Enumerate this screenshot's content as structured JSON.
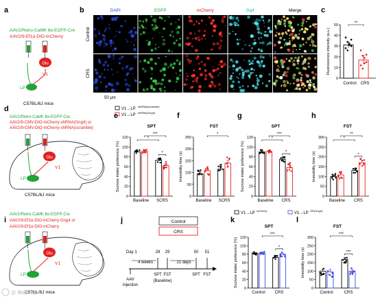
{
  "panel_letters": [
    "a",
    "b",
    "c",
    "d",
    "e",
    "f",
    "g",
    "h",
    "i",
    "j",
    "k",
    "l"
  ],
  "panel_a": {
    "viral_lines": [
      {
        "text": "AAV2/Retro-CaMK Ⅱα-EGFP-Cre",
        "color": "#22a33a"
      },
      {
        "text": "AAV2/9-Ef1α-DIO-mCherry",
        "color": "#e02020"
      }
    ],
    "labels": {
      "glu": "Glu",
      "v1": "V1",
      "lp": "LP",
      "mouse": "C57BL/6J mice"
    }
  },
  "panel_b": {
    "channels": [
      "DAPI",
      "EGFP",
      "mCherry",
      "Gq4",
      "Merge"
    ],
    "channel_colors": [
      "#2a4bd8",
      "#22a33a",
      "#e02020",
      "#20b8c8",
      "#000000"
    ],
    "rows": [
      "Control",
      "CRS"
    ],
    "scalebar": "50 μm"
  },
  "panel_c": {
    "ylabel": "Fluorescence intensity (a.u.)",
    "sig": "**",
    "chart_data": {
      "type": "bar",
      "categories": [
        "Control",
        "CRS"
      ],
      "values": [
        31,
        17
      ],
      "errors": [
        2.5,
        4
      ],
      "ylim": [
        0,
        50
      ],
      "yticks": [
        "0",
        "10",
        "20",
        "30",
        "40",
        "50"
      ],
      "points": [
        [
          38,
          34,
          32,
          30,
          28,
          26,
          31,
          36
        ],
        [
          26,
          21,
          19,
          15,
          12,
          9,
          14,
          22
        ]
      ],
      "colors": [
        "#000000",
        "#e02020"
      ],
      "ylabel": "Fluorescence intensity (a.u.)"
    }
  },
  "panel_d": {
    "viral_lines": [
      {
        "text": "AAV2/Retro-CaMK Ⅱα-EGFP-Cre",
        "color": "#22a33a"
      },
      {
        "text": "AAV2/9-CMV-DIO-mCherry-shRNA(Gng4) or",
        "color": "#e02020"
      },
      {
        "text": "AAV2/9-CMV-DIO-mCherry-shRNA(scramble)",
        "color": "#e02020"
      }
    ],
    "labels": {
      "glu": "Glu",
      "v1": "V1",
      "lp": "LP",
      "mouse": "C57BL/6J mice"
    }
  },
  "legend_efgh": [
    {
      "label": "V1→LP",
      "sup": "shRNA(scramble)",
      "color": "#000000"
    },
    {
      "label": "V1→LP",
      "sup": "shRNA(Gng4)",
      "color": "#e02020"
    }
  ],
  "panel_e": {
    "title": "SPT",
    "sigs": [
      "***",
      "*",
      "*"
    ],
    "chart_data": {
      "type": "bar",
      "groups": [
        "Baseline",
        "SCRS"
      ],
      "series": [
        {
          "color": "#000000",
          "values": [
            90,
            73
          ],
          "errors": [
            2,
            3
          ]
        },
        {
          "color": "#e02020",
          "values": [
            91,
            62
          ],
          "errors": [
            2,
            4
          ]
        }
      ],
      "ylim": [
        0,
        120
      ],
      "yticks": [
        "0",
        "20",
        "40",
        "60",
        "80",
        "100",
        "120"
      ],
      "ylabel": "Sucrose intake preference (%)"
    }
  },
  "panel_f": {
    "title": "FST",
    "sigs": [
      "*"
    ],
    "chart_data": {
      "type": "bar",
      "groups": [
        "Baseline",
        "SCRS"
      ],
      "series": [
        {
          "color": "#000000",
          "values": [
            95,
            115
          ],
          "errors": [
            8,
            10
          ]
        },
        {
          "color": "#e02020",
          "values": [
            108,
            140
          ],
          "errors": [
            10,
            12
          ]
        }
      ],
      "ylim": [
        0,
        250
      ],
      "yticks": [
        "0",
        "50",
        "100",
        "150",
        "200",
        "250"
      ],
      "ylabel": "Immobility time (s)"
    }
  },
  "panel_g": {
    "title": "SPT",
    "sigs": [
      "***",
      "*",
      "*"
    ],
    "chart_data": {
      "type": "bar",
      "groups": [
        "Baseline",
        "CRS"
      ],
      "series": [
        {
          "color": "#000000",
          "values": [
            90,
            75
          ],
          "errors": [
            2,
            3
          ]
        },
        {
          "color": "#e02020",
          "values": [
            91,
            58
          ],
          "errors": [
            2,
            5
          ]
        }
      ],
      "ylim": [
        0,
        120
      ],
      "yticks": [
        "0",
        "20",
        "40",
        "60",
        "80",
        "100",
        "120"
      ],
      "ylabel": "Sucrose intake preference (%)"
    }
  },
  "panel_h": {
    "title": "FST",
    "sigs": [
      "**",
      "*",
      "*"
    ],
    "chart_data": {
      "type": "bar",
      "groups": [
        "Baseline",
        "CRS"
      ],
      "series": [
        {
          "color": "#000000",
          "values": [
            100,
            130
          ],
          "errors": [
            8,
            12
          ]
        },
        {
          "color": "#e02020",
          "values": [
            108,
            170
          ],
          "errors": [
            10,
            12
          ]
        }
      ],
      "ylim": [
        0,
        300
      ],
      "yticks": [
        "0",
        "50",
        "100",
        "150",
        "200",
        "250",
        "300"
      ],
      "ylabel": "Immobility time (s)"
    }
  },
  "panel_i": {
    "viral_lines": [
      {
        "text": "AAV2/Retro-CaMK Ⅱα-EGFP-Cre",
        "color": "#22a33a"
      },
      {
        "text": "AAV2/9-Ef1α-DIO-mCherry-Gng4 or",
        "color": "#e02020"
      },
      {
        "text": "AAV2/9-Ef1α-DIO-mCherry",
        "color": "#e02020"
      }
    ],
    "labels": {
      "glu": "Glu",
      "v1": "V1",
      "lp": "LP",
      "mouse": "C57BL/6J mice"
    }
  },
  "panel_j": {
    "control": "Control",
    "crs": "CRS",
    "day_label": "Day 1",
    "weeks": "4 weeks",
    "days": "21 days",
    "day_ticks": [
      "28",
      "29",
      "50",
      "51"
    ],
    "events": [
      "AAV",
      "injection",
      "SPT",
      "FST",
      "(Baseline)",
      "SPT",
      "FST"
    ]
  },
  "legend_kl": [
    {
      "label": "V1→LP",
      "sup": "mCherry",
      "color": "#000000"
    },
    {
      "label": "V1→LP",
      "sup": "OE(Gng4)",
      "color": "#3a4be0"
    }
  ],
  "panel_k": {
    "title": "SPT",
    "sigs": [
      "***",
      "*"
    ],
    "chart_data": {
      "type": "bar",
      "groups": [
        "Control",
        "CRS"
      ],
      "series": [
        {
          "color": "#000000",
          "values": [
            82,
            72
          ],
          "errors": [
            2,
            3
          ]
        },
        {
          "color": "#3a4be0",
          "values": [
            83,
            80
          ],
          "errors": [
            2,
            3
          ]
        }
      ],
      "ylim": [
        0,
        120
      ],
      "yticks": [
        "0",
        "20",
        "40",
        "60",
        "80",
        "100",
        "120"
      ],
      "ylabel": "Sucrose intake preference (%)"
    }
  },
  "panel_l": {
    "title": "FST",
    "sigs": [
      "***",
      "***"
    ],
    "chart_data": {
      "type": "bar",
      "groups": [
        "Control",
        "CRS"
      ],
      "series": [
        {
          "color": "#000000",
          "values": [
            100,
            168
          ],
          "errors": [
            12,
            10
          ]
        },
        {
          "color": "#3a4be0",
          "values": [
            95,
            100
          ],
          "errors": [
            15,
            10
          ]
        }
      ],
      "ylim": [
        0,
        300
      ],
      "yticks": [
        "0",
        "50",
        "100",
        "150",
        "200",
        "250",
        "300"
      ],
      "ylabel": "Immobility time (s)"
    }
  },
  "watermark": "@ 神经广场"
}
